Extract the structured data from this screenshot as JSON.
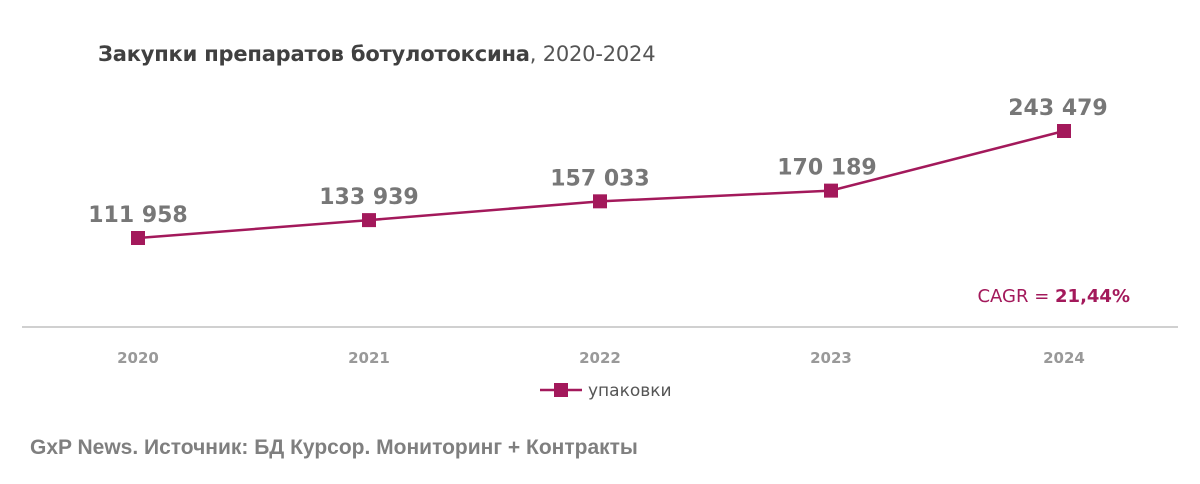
{
  "title": {
    "bold": "Закупки препаратов ботулотоксина",
    "suffix": ", 2020-2024"
  },
  "colors": {
    "series": "#a3195b",
    "axis": "#d0d0d0",
    "labels": "#777777",
    "ticks": "#999999"
  },
  "chart_data": {
    "type": "line",
    "title": "Закупки препаратов ботулотоксина, 2020-2024",
    "categories": [
      "2020",
      "2021",
      "2022",
      "2023",
      "2024"
    ],
    "series": [
      {
        "name": "упаковки",
        "values": [
          111958,
          133939,
          157033,
          170189,
          243479
        ],
        "labels": [
          "111 958",
          "133 939",
          "157 033",
          "170 189",
          "243 479"
        ]
      }
    ],
    "xlabel": "",
    "ylabel": "",
    "grid": false,
    "legend_position": "bottom",
    "annotations": [
      {
        "text": "CAGR = 21,44%",
        "prefix": "CAGR = ",
        "value": "21,44%"
      }
    ]
  },
  "cagr": {
    "prefix": "CAGR = ",
    "value": "21,44%"
  },
  "legend": {
    "label": "упаковки"
  },
  "source": "GxP News. Источник: БД Курсор. Мониторинг + Контракты"
}
